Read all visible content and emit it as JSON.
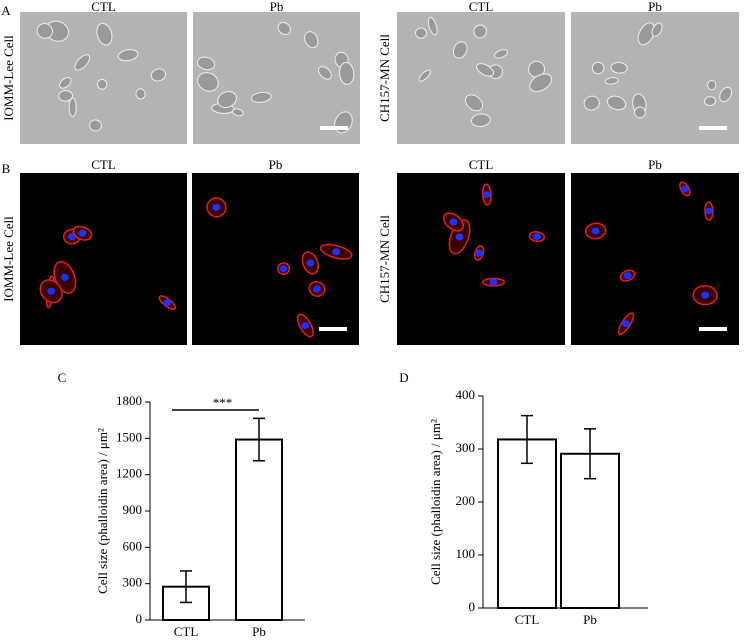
{
  "micrographs": [
    {
      "panel_label": "A",
      "row_label": "IOMM-Lee Cell",
      "columns": [
        "CTL",
        "Pb"
      ]
    },
    {
      "row_label": "CH157-MN Cell",
      "columns": [
        "CTL",
        "Pb"
      ]
    },
    {
      "panel_label": "B",
      "row_label": "IOMM-Lee Cell",
      "columns": [
        "CTL",
        "Pb"
      ]
    },
    {
      "row_label": "CH157-MN Cell",
      "columns": [
        "CTL",
        "Pb"
      ]
    }
  ],
  "chart_data": [
    {
      "type": "bar",
      "panel_label": "C",
      "y_label": "Cell size (phalloidin area) / μm²",
      "categories": [
        "CTL",
        "Pb"
      ],
      "values": [
        275,
        1490
      ],
      "error": [
        130,
        175
      ],
      "ylim": [
        0,
        1800
      ],
      "yticks": [
        0,
        300,
        600,
        900,
        1200,
        1500,
        1800
      ],
      "annotation": "***"
    },
    {
      "type": "bar",
      "panel_label": "D",
      "y_label": "Cell size (phalloidin area) / μm²",
      "categories": [
        "CTL",
        "Pb"
      ],
      "values": [
        318,
        291
      ],
      "error": [
        45,
        47
      ],
      "ylim": [
        0,
        400
      ],
      "yticks": [
        0,
        100,
        200,
        300,
        400
      ]
    }
  ]
}
